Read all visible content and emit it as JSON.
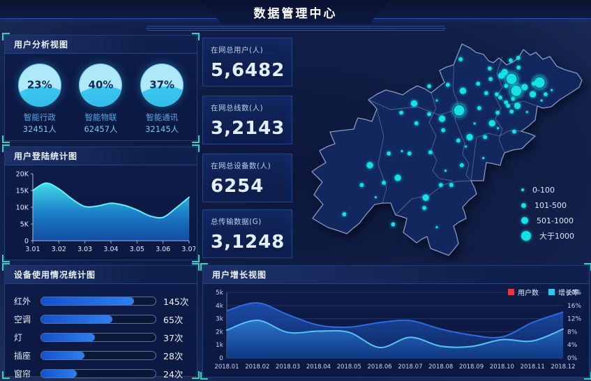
{
  "header": {
    "title": "数据管理中心"
  },
  "panels": {
    "user_analysis": {
      "title": "用户分析视图"
    },
    "login_stats": {
      "title": "用户登陆统计图"
    },
    "device_usage": {
      "title": "设备使用情况统计图"
    },
    "growth": {
      "title": "用户增长视图"
    }
  },
  "stat_cards": [
    {
      "label": "在网总用户(人)",
      "value": "5,6482"
    },
    {
      "label": "在网总线数(人)",
      "value": "3,2143"
    },
    {
      "label": "在网总设备数(人)",
      "value": "6254"
    },
    {
      "label": "总传输数据(G)",
      "value": "3,1248"
    }
  ],
  "colors": {
    "accent_teal": "#2ed8c6",
    "cyan_dot": "#15e2e6",
    "bar_fill": "#1f6ae4",
    "users_series": "#2e6ae0",
    "rate_series": "#54c4f6",
    "legend_users_red": "#e23a44",
    "legend_rate_cyan": "#2fc6f2"
  },
  "chart_data": [
    {
      "id": "liquid",
      "type": "pie",
      "title": "用户分析视图",
      "items": [
        {
          "percent": "23%",
          "label": "智能行政",
          "count": "32451人"
        },
        {
          "percent": "40%",
          "label": "智能物联",
          "count": "62457人"
        },
        {
          "percent": "37%",
          "label": "智能通讯",
          "count": "32145人"
        }
      ]
    },
    {
      "id": "login",
      "type": "area",
      "title": "用户登陆统计图",
      "xlabel": "",
      "ylabel": "",
      "x_ticks": [
        "3.01",
        "3.02",
        "3.03",
        "3.04",
        "3.05",
        "3.06",
        "3.07"
      ],
      "y_ticks": [
        "0",
        "5K",
        "10K",
        "15K",
        "20K"
      ],
      "ylim": [
        0,
        20000
      ],
      "x": [
        3.01,
        3.015,
        3.02,
        3.025,
        3.03,
        3.035,
        3.04,
        3.045,
        3.05,
        3.055,
        3.06,
        3.065,
        3.07
      ],
      "values": [
        15000,
        17200,
        15500,
        12500,
        10200,
        10400,
        11200,
        10600,
        9200,
        7400,
        7000,
        9800,
        13000
      ]
    },
    {
      "id": "device",
      "type": "bar",
      "title": "设备使用情况统计图",
      "categories": [
        "红外",
        "空调",
        "灯",
        "插座",
        "窗帘"
      ],
      "values": [
        145,
        65,
        37,
        28,
        24
      ],
      "value_labels": [
        "145次",
        "65次",
        "37次",
        "28次",
        "24次"
      ],
      "fill_pct": [
        81,
        62,
        47,
        38,
        31
      ]
    },
    {
      "id": "growth",
      "type": "area",
      "title": "用户增长视图",
      "categories": [
        "2018.01",
        "2018.02",
        "2018.03",
        "2018.04",
        "2018.05",
        "2018.06",
        "2018.07",
        "2018.08",
        "2018.09",
        "2018.10",
        "2018.11",
        "2018.12"
      ],
      "left_ticks": [
        "0",
        "1k",
        "2k",
        "3k",
        "4k",
        "5k"
      ],
      "right_ticks": [
        "0%",
        "4%",
        "8%",
        "12%",
        "16%",
        "20%"
      ],
      "left_lim": [
        0,
        5000
      ],
      "right_lim": [
        0,
        20
      ],
      "legend_position": "top-right",
      "series": [
        {
          "name": "用户数",
          "axis": "left",
          "color": "#2e6ae0",
          "fill": "#1a3e86",
          "values": [
            3600,
            4200,
            3300,
            2500,
            2350,
            2700,
            2850,
            2200,
            1750,
            1600,
            2700,
            3500
          ]
        },
        {
          "name": "增长率",
          "axis": "right",
          "color": "#54c4f6",
          "fill": "#2e6ec2",
          "values_pct": [
            8.5,
            11.5,
            7.8,
            8.2,
            7.8,
            3.2,
            6.3,
            3.6,
            3.5,
            5.6,
            5.2,
            8.8
          ]
        }
      ]
    },
    {
      "id": "map",
      "type": "scatter",
      "title": "",
      "point_color": "#15e2e6",
      "legend": [
        {
          "label": "0-100",
          "tier": 1
        },
        {
          "label": "101-500",
          "tier": 2
        },
        {
          "label": "501-1000",
          "tier": 3
        },
        {
          "label": "大于1000",
          "tier": 4
        }
      ],
      "dots": [
        [
          72.7,
          20.6,
          4
        ],
        [
          74.3,
          25.8,
          4
        ],
        [
          82.3,
          22.2,
          4
        ],
        [
          54.7,
          34.3,
          4
        ],
        [
          70.3,
          17.7,
          3
        ],
        [
          69.2,
          19.2,
          3
        ],
        [
          77.2,
          24.2,
          3
        ],
        [
          80.0,
          27.3,
          3
        ],
        [
          74.7,
          32.3,
          3
        ],
        [
          56.0,
          25.8,
          3
        ],
        [
          48.8,
          37.9,
          3
        ],
        [
          66.0,
          39.9,
          3
        ],
        [
          43.2,
          72.2,
          3
        ],
        [
          24.0,
          58.1,
          3
        ],
        [
          33.6,
          63.6,
          3
        ],
        [
          39.2,
          31.3,
          3
        ],
        [
          58.3,
          45.9,
          3
        ],
        [
          61.2,
          22.7,
          2
        ],
        [
          64.0,
          26.8,
          2
        ],
        [
          65.5,
          20.7,
          2
        ],
        [
          67.6,
          27.3,
          2
        ],
        [
          68.8,
          28.7,
          2
        ],
        [
          70.8,
          23.7,
          2
        ],
        [
          73.2,
          29.3,
          2
        ],
        [
          71.5,
          32.3,
          2
        ],
        [
          75.1,
          15.7,
          2
        ],
        [
          72.4,
          12.6,
          2
        ],
        [
          80.3,
          22.7,
          2
        ],
        [
          84.4,
          27.3,
          2
        ],
        [
          61.6,
          33.3,
          2
        ],
        [
          67.9,
          35.3,
          2
        ],
        [
          72.7,
          34.8,
          2
        ],
        [
          70.8,
          30.8,
          2
        ],
        [
          44.4,
          23.8,
          2
        ],
        [
          50.8,
          23.2,
          2
        ],
        [
          34.8,
          35.3,
          2
        ],
        [
          44.4,
          35.9,
          2
        ],
        [
          40.0,
          39.9,
          2
        ],
        [
          49.2,
          42.9,
          2
        ],
        [
          54.4,
          47.4,
          2
        ],
        [
          63.6,
          45.9,
          2
        ],
        [
          73.6,
          43.5,
          2
        ],
        [
          37.6,
          53.0,
          2
        ],
        [
          44.8,
          52.5,
          2
        ],
        [
          30.5,
          53.0,
          2
        ],
        [
          55.6,
          58.1,
          2
        ],
        [
          48.4,
          66.7,
          2
        ],
        [
          52.0,
          66.7,
          2
        ],
        [
          21.2,
          66.7,
          2
        ],
        [
          28.8,
          65.7,
          2
        ],
        [
          15.2,
          79.4,
          2
        ],
        [
          32.0,
          83.8,
          2
        ],
        [
          42.7,
          76.7,
          2
        ],
        [
          55.2,
          12.1,
          2
        ],
        [
          65.2,
          16.1,
          2
        ],
        [
          75.0,
          11.5,
          2
        ],
        [
          35.0,
          52.0,
          1
        ],
        [
          63.0,
          55.0,
          1
        ],
        [
          50.0,
          60.5,
          1
        ],
        [
          57.0,
          50.0,
          1
        ],
        [
          47.0,
          30.0,
          1
        ],
        [
          60.0,
          40.0,
          1
        ],
        [
          68.0,
          42.0,
          1
        ],
        [
          78.0,
          35.0,
          1
        ],
        [
          26.0,
          72.0,
          1
        ],
        [
          47.0,
          85.0,
          1
        ],
        [
          83.0,
          30.0,
          1
        ],
        [
          86.5,
          25.5,
          1
        ]
      ]
    }
  ]
}
